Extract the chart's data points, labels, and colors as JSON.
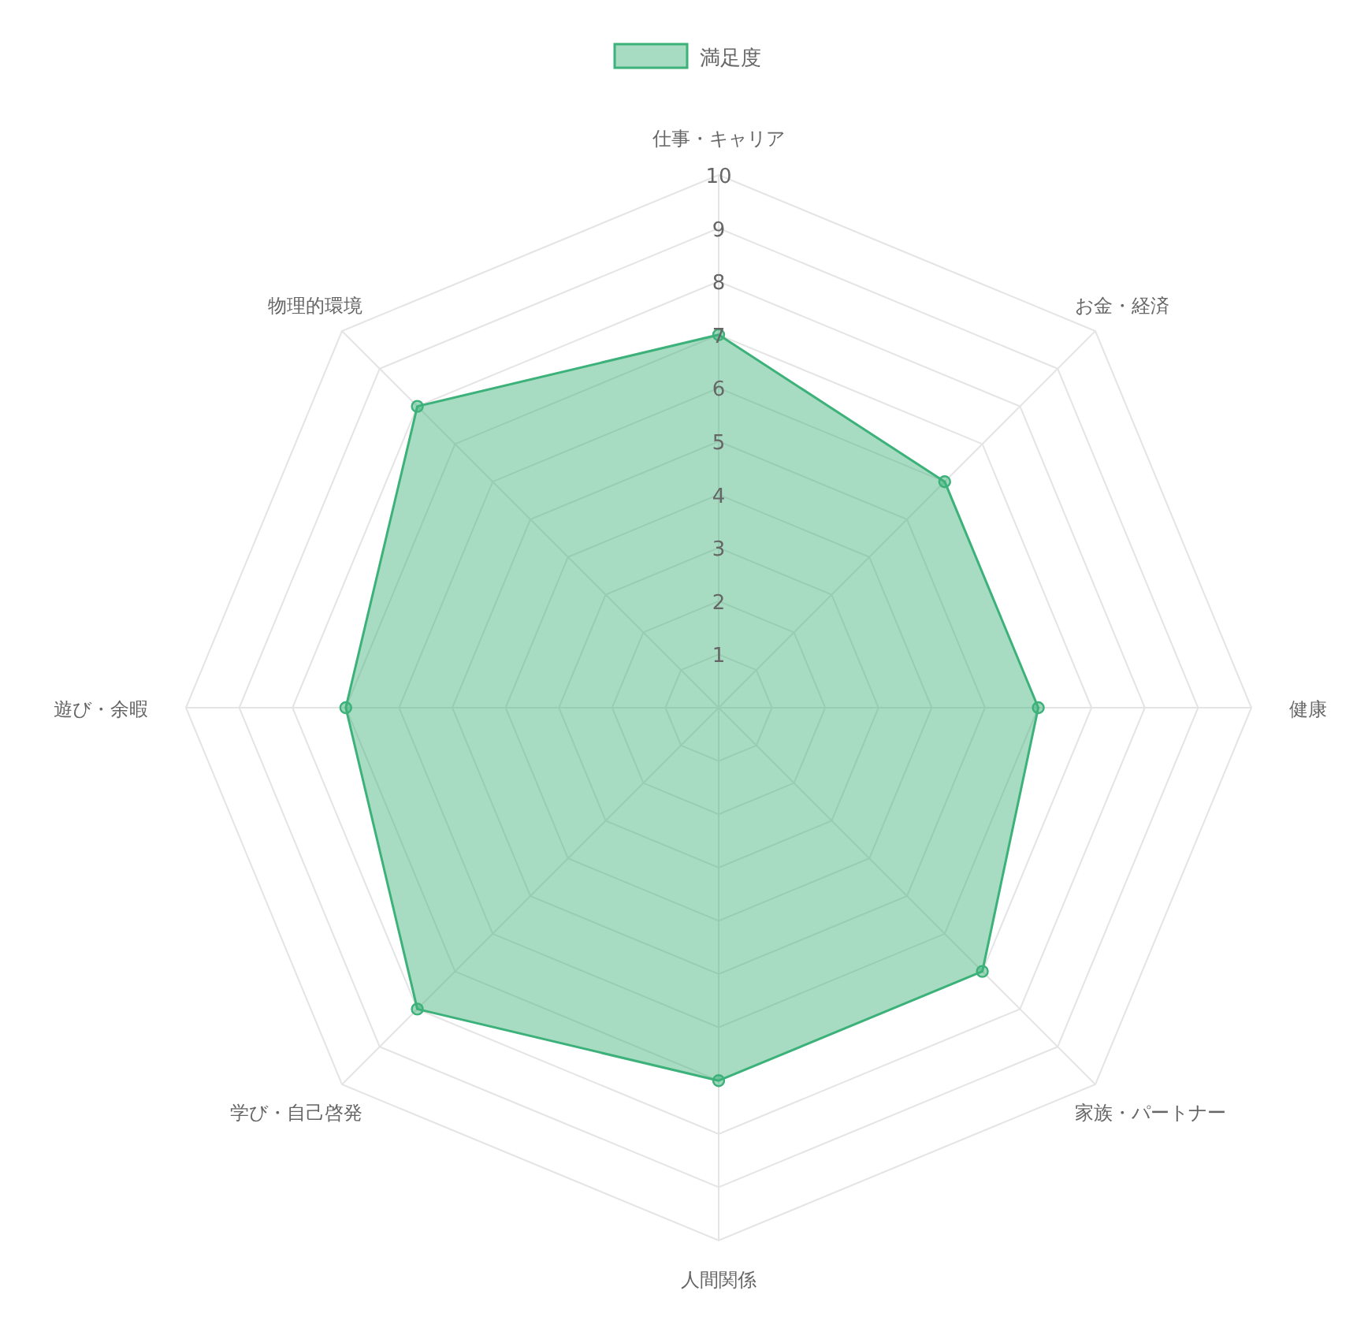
{
  "chart_data": {
    "type": "radar",
    "categories": [
      "仕事・キャリア",
      "お金・経済",
      "健康",
      "家族・パートナー",
      "人間関係",
      "学び・自己啓発",
      "遊び・余暇",
      "物理的環境"
    ],
    "series": [
      {
        "name": "満足度",
        "color": "#3cb179",
        "values": [
          7,
          6,
          6,
          7,
          7,
          8,
          7,
          8
        ]
      }
    ],
    "ylim": [
      0,
      10
    ],
    "yticks": [
      1,
      2,
      3,
      4,
      5,
      6,
      7,
      8,
      9,
      10
    ],
    "grid": true,
    "legend": "top",
    "marker": "circle"
  }
}
